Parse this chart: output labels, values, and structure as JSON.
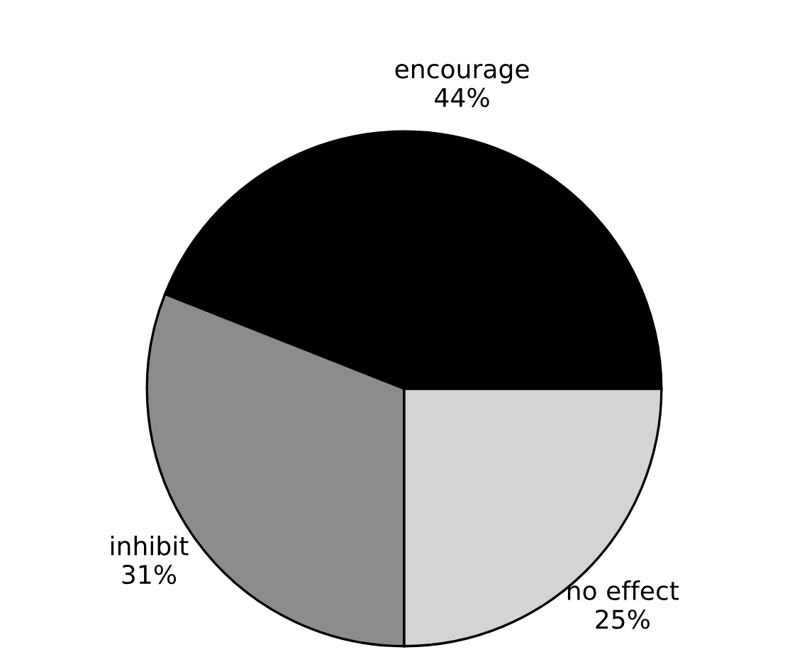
{
  "chart_data": {
    "type": "pie",
    "categories": [
      "encourage",
      "inhibit",
      "no effect"
    ],
    "values": [
      44,
      31,
      25
    ],
    "colors": [
      "#000000",
      "#8c8c8c",
      "#d4d4d4"
    ],
    "value_labels": [
      "44%",
      "31%",
      "25%"
    ]
  }
}
